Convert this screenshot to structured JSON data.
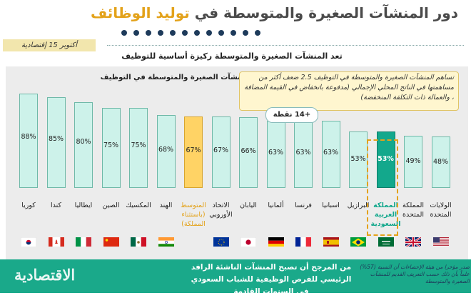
{
  "title_part1": "دور المنشآت الصغيرة والمتوسطة في",
  "title_part2": "توليد الوظائف",
  "date_tag": "أكتوبر 15 إقتصادية",
  "subtitle": "تعد المنشآت الصغيرة والمتوسطة ركيزة أساسية للتوظيف",
  "note": "تساهم المنشآت الصغيرة والمتوسطة في التوظيف 2.5 ضعف أكثر من مساهمتها في الناتج المحلي الإجمالي (مدفوعة بانخفاض في القيمة المضافة ، والعمالة ذات التكلفة المنخفضة)",
  "callout": "+14 نقطة",
  "footer_main": "من المرجح أن تصبح المنشآت الناشئة الرافد الرئيسي للفرص الوظيفية للشباب السعودي في السنوات القادمة",
  "footer_source": "صدر مؤخرا من هيئة الإحصاءات أن النسبة (57%) علماً بأن ذلك حسب التعريف القديم للمنشآت الصغيرة والمتوسطة",
  "logo_text": "الاقتصادية",
  "colors": {
    "bar": "#cdf2ea",
    "bar_highlight": "#ffd365",
    "bar_saudi": "#13a88c",
    "accent": "#e3a21a",
    "footer": "#1aa98a"
  },
  "chart_data": {
    "type": "bar",
    "ylabel": "نسبة مساهمة المنشآت الصغيرة والمتوسطة في التوظيف",
    "ylim": [
      0,
      100
    ],
    "grid": false,
    "categories": [
      "كوريا",
      "كندا",
      "ايطاليا",
      "الصين",
      "المكسيك",
      "الهند",
      "المتوسط (باستثناء المملكة)",
      "الاتحاد الأوروبي",
      "اليابان",
      "ألمانيا",
      "فرنسا",
      "اسبانيا",
      "البرازيل",
      "المملكة العربية السعودية",
      "المملكة المتحدة",
      "الولايات المتحدة"
    ],
    "values": [
      88,
      85,
      80,
      75,
      75,
      68,
      67,
      67,
      66,
      63,
      63,
      63,
      53,
      53,
      49,
      48
    ],
    "value_labels": [
      "88%",
      "85%",
      "80%",
      "75%",
      "75%",
      "68%",
      "67%",
      "67%",
      "66%",
      "63%",
      "63%",
      "63%",
      "53%",
      "53%",
      "49%",
      "48%"
    ],
    "highlight": {
      "average_index": 6,
      "saudi_index": 13
    },
    "flags": [
      "korea-flag-icon",
      "canada-flag-icon",
      "italy-flag-icon",
      "china-flag-icon",
      "mexico-flag-icon",
      "india-flag-icon",
      "",
      "eu-flag-icon",
      "japan-flag-icon",
      "germany-flag-icon",
      "france-flag-icon",
      "spain-flag-icon",
      "brazil-flag-icon",
      "saudi-flag-icon",
      "uk-flag-icon",
      "us-flag-icon"
    ]
  }
}
